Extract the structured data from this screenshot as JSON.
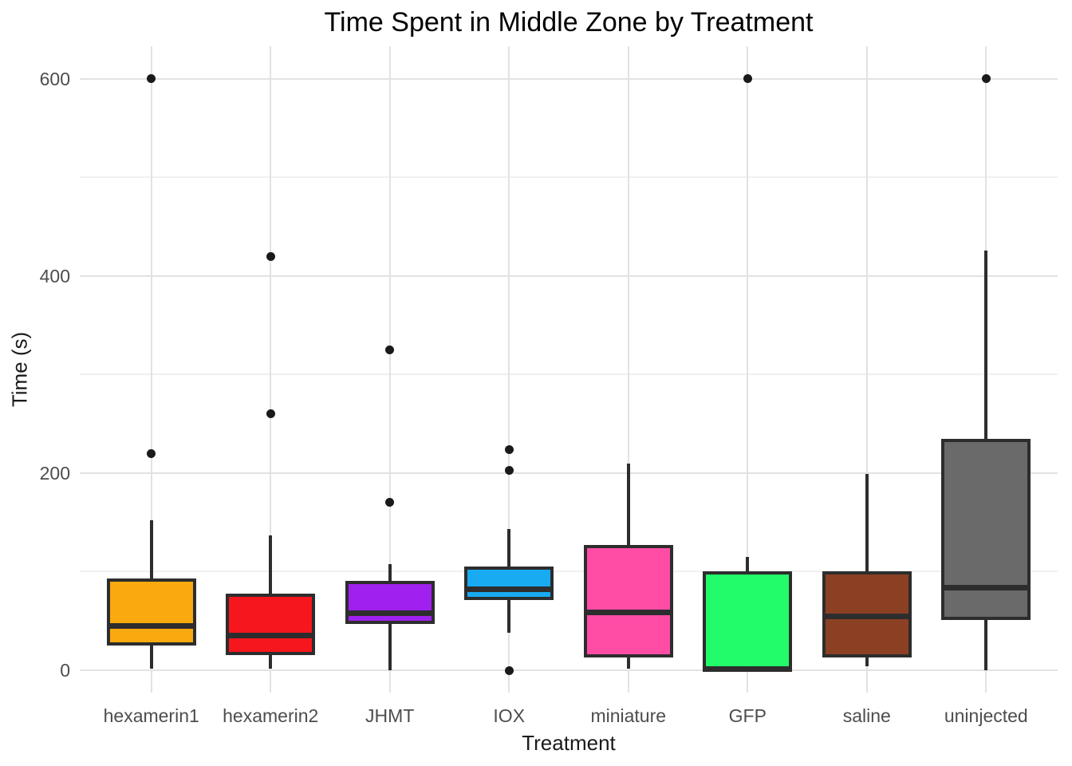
{
  "chart_data": {
    "type": "box",
    "title": "Time Spent in Middle Zone by Treatment",
    "xlabel": "Treatment",
    "ylabel": "Time (s)",
    "ylim": [
      0,
      633
    ],
    "yticks": [
      0,
      200,
      400,
      600
    ],
    "ytick_labels": [
      "0",
      "200",
      "400",
      "600"
    ],
    "yticks_minor": [
      100,
      300,
      500
    ],
    "grid": true,
    "legend": "none",
    "categories": [
      "hexamerin1",
      "hexamerin2",
      "JHMT",
      "IOX",
      "miniature",
      "GFP",
      "saline",
      "uninjected"
    ],
    "series": [
      {
        "label": "hexamerin1",
        "color": "#FAA90F",
        "whisker_low": 2,
        "q1": 25,
        "median": 45,
        "q3": 93,
        "whisker_high": 152,
        "outliers": [
          220,
          600
        ]
      },
      {
        "label": "hexamerin2",
        "color": "#F5171D",
        "whisker_low": 2,
        "q1": 15,
        "median": 35,
        "q3": 78,
        "whisker_high": 137,
        "outliers": [
          260,
          420
        ]
      },
      {
        "label": "JHMT",
        "color": "#A020F0",
        "whisker_low": 0,
        "q1": 47,
        "median": 58,
        "q3": 91,
        "whisker_high": 108,
        "outliers": [
          170,
          325
        ]
      },
      {
        "label": "IOX",
        "color": "#18ABF2",
        "whisker_low": 38,
        "q1": 71,
        "median": 82,
        "q3": 105,
        "whisker_high": 143,
        "outliers": [
          0,
          203,
          224
        ]
      },
      {
        "label": "miniature",
        "color": "#FF4DA6",
        "whisker_low": 2,
        "q1": 13,
        "median": 59,
        "q3": 127,
        "whisker_high": 210,
        "outliers": []
      },
      {
        "label": "GFP",
        "color": "#22FC6A",
        "whisker_low": 0,
        "q1": 0,
        "median": 1,
        "q3": 100,
        "whisker_high": 115,
        "outliers": [
          600
        ]
      },
      {
        "label": "saline",
        "color": "#8C4023",
        "whisker_low": 4,
        "q1": 13,
        "median": 55,
        "q3": 100,
        "whisker_high": 199,
        "outliers": []
      },
      {
        "label": "uninjected",
        "color": "#6A6A6A",
        "whisker_low": 0,
        "q1": 51,
        "median": 84,
        "q3": 235,
        "whisker_high": 426,
        "outliers": [
          600
        ]
      }
    ],
    "style": {
      "box_border": "#2D2D2D",
      "median_color": "#2D2D2D",
      "outlier_color": "#1A1A1A",
      "grid_major": "#E2E2E2",
      "grid_minor": "#F0F0F0",
      "tick_label_color": "#4D4D4D",
      "axis_title_color": "#1A1A1A",
      "title_color": "#000000",
      "background": "#FFFFFF"
    }
  }
}
